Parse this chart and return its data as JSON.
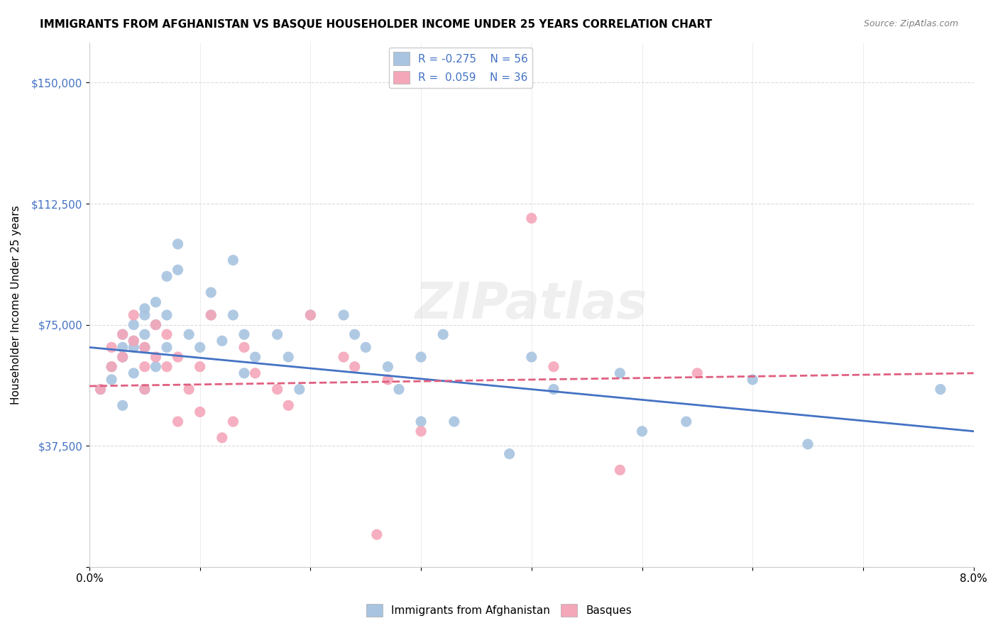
{
  "title": "IMMIGRANTS FROM AFGHANISTAN VS BASQUE HOUSEHOLDER INCOME UNDER 25 YEARS CORRELATION CHART",
  "source": "Source: ZipAtlas.com",
  "xlabel": "",
  "ylabel": "Householder Income Under 25 years",
  "xlim": [
    0.0,
    0.08
  ],
  "ylim": [
    0,
    162500
  ],
  "yticks": [
    0,
    37500,
    75000,
    112500,
    150000
  ],
  "ytick_labels": [
    "",
    "$37,500",
    "$75,000",
    "$112,500",
    "$150,000"
  ],
  "xtick_labels": [
    "0.0%",
    "",
    "",
    "",
    "",
    "",
    "",
    "",
    "8.0%"
  ],
  "legend_r1": "R = -0.275",
  "legend_n1": "N = 56",
  "legend_r2": "R =  0.059",
  "legend_n2": "N = 36",
  "blue_color": "#a8c4e0",
  "pink_color": "#f4a7b9",
  "line_blue": "#4472c4",
  "line_pink": "#e06080",
  "watermark": "ZIPatlas",
  "blue_scatter_x": [
    0.001,
    0.002,
    0.002,
    0.003,
    0.003,
    0.003,
    0.003,
    0.004,
    0.004,
    0.004,
    0.004,
    0.005,
    0.005,
    0.005,
    0.005,
    0.005,
    0.006,
    0.006,
    0.006,
    0.007,
    0.007,
    0.007,
    0.008,
    0.008,
    0.009,
    0.01,
    0.011,
    0.011,
    0.012,
    0.013,
    0.013,
    0.014,
    0.014,
    0.015,
    0.017,
    0.018,
    0.019,
    0.02,
    0.023,
    0.024,
    0.025,
    0.027,
    0.028,
    0.03,
    0.03,
    0.032,
    0.033,
    0.038,
    0.04,
    0.042,
    0.048,
    0.05,
    0.054,
    0.06,
    0.065,
    0.077
  ],
  "blue_scatter_y": [
    55000,
    62000,
    58000,
    72000,
    68000,
    65000,
    50000,
    75000,
    70000,
    68000,
    60000,
    80000,
    78000,
    72000,
    68000,
    55000,
    82000,
    75000,
    62000,
    90000,
    78000,
    68000,
    100000,
    92000,
    72000,
    68000,
    85000,
    78000,
    70000,
    95000,
    78000,
    72000,
    60000,
    65000,
    72000,
    65000,
    55000,
    78000,
    78000,
    72000,
    68000,
    62000,
    55000,
    65000,
    45000,
    72000,
    45000,
    35000,
    65000,
    55000,
    60000,
    42000,
    45000,
    58000,
    38000,
    55000
  ],
  "pink_scatter_x": [
    0.001,
    0.002,
    0.002,
    0.003,
    0.003,
    0.004,
    0.004,
    0.005,
    0.005,
    0.005,
    0.006,
    0.006,
    0.007,
    0.007,
    0.008,
    0.008,
    0.009,
    0.01,
    0.01,
    0.011,
    0.012,
    0.013,
    0.014,
    0.015,
    0.017,
    0.018,
    0.02,
    0.023,
    0.024,
    0.026,
    0.027,
    0.03,
    0.04,
    0.042,
    0.048,
    0.055
  ],
  "pink_scatter_y": [
    55000,
    68000,
    62000,
    72000,
    65000,
    78000,
    70000,
    68000,
    62000,
    55000,
    75000,
    65000,
    72000,
    62000,
    65000,
    45000,
    55000,
    62000,
    48000,
    78000,
    40000,
    45000,
    68000,
    60000,
    55000,
    50000,
    78000,
    65000,
    62000,
    10000,
    58000,
    42000,
    108000,
    62000,
    30000,
    60000
  ],
  "blue_trend_x": [
    0.0,
    0.08
  ],
  "blue_trend_y": [
    68000,
    42000
  ],
  "pink_trend_x": [
    0.0,
    0.08
  ],
  "pink_trend_y": [
    56000,
    60000
  ]
}
